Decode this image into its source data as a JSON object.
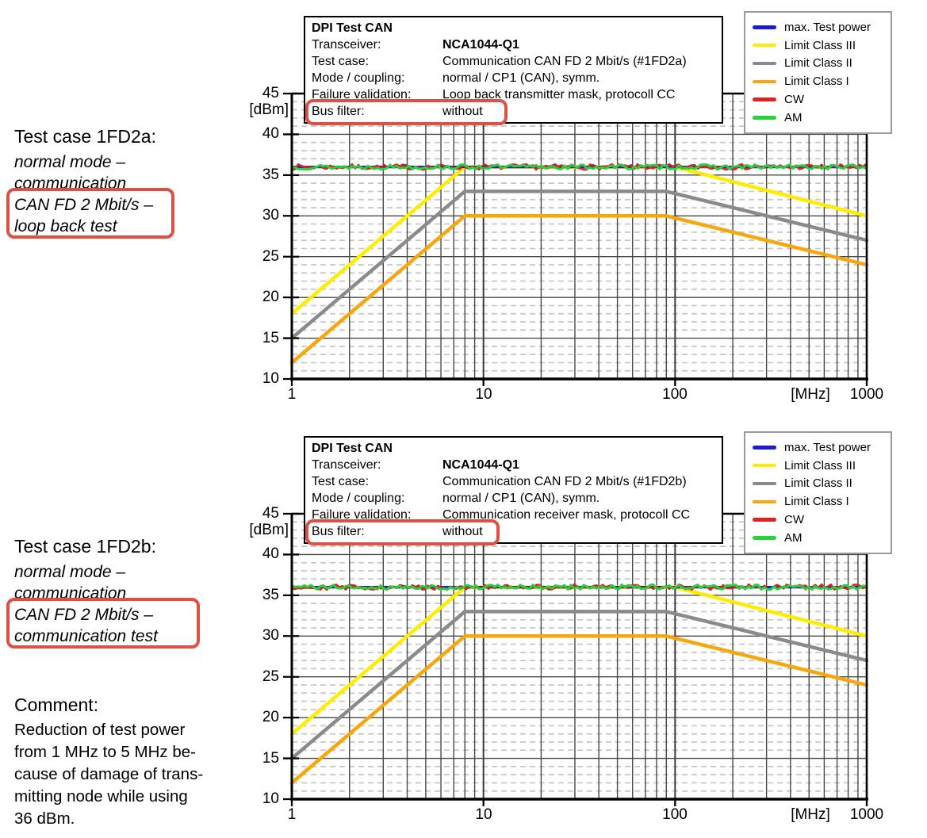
{
  "colors": {
    "highlight_box": "#dd5144",
    "grid_major": "#484848",
    "grid_minor": "#c6c6c6",
    "axis": "#000000"
  },
  "annotations": {
    "top": {
      "title": "Test case 1FD2a:",
      "lines": [
        "normal mode –",
        "communication"
      ],
      "boxed_lines": [
        "CAN FD 2 Mbit/s –",
        "loop back test"
      ]
    },
    "bottom": {
      "title": "Test case 1FD2b:",
      "lines": [
        "normal mode –",
        "communication"
      ],
      "boxed_lines": [
        "CAN FD 2 Mbit/s –",
        "communication test"
      ]
    },
    "comment": {
      "title": "Comment:",
      "lines": [
        "Reduction of test power",
        "from 1 MHz to 5 MHz be-",
        "cause of damage of trans-",
        "mitting node while using",
        "36 dBm."
      ]
    }
  },
  "info_boxes": [
    {
      "title": "DPI Test CAN",
      "rows": [
        {
          "label": "Transceiver:",
          "value": "NCA1044-Q1",
          "bold": true
        },
        {
          "label": "Test case:",
          "value": "Communication CAN FD 2 Mbit/s (#1FD2a)"
        },
        {
          "label": "Mode / coupling:",
          "value": "normal / CP1 (CAN), symm."
        },
        {
          "label": "Failure validation:",
          "value": "Loop back transmitter mask, protocoll CC"
        },
        {
          "label": "Bus filter:",
          "value": "without",
          "highlighted": true
        }
      ]
    },
    {
      "title": "DPI Test CAN",
      "rows": [
        {
          "label": "Transceiver:",
          "value": "NCA1044-Q1",
          "bold": true
        },
        {
          "label": "Test case:",
          "value": "Communication CAN FD 2 Mbit/s (#1FD2b)"
        },
        {
          "label": "Mode / coupling:",
          "value": "normal / CP1 (CAN), symm."
        },
        {
          "label": "Failure validation:",
          "value": "Communication receiver mask, protocoll CC"
        },
        {
          "label": "Bus filter:",
          "value": "without",
          "highlighted": true
        }
      ]
    }
  ],
  "chart_data": [
    {
      "type": "line",
      "title": "DPI Test CAN – Test case #1FD2a",
      "x_axis": {
        "scale": "log",
        "min": 1,
        "max": 1000,
        "unit_label": "[MHz]",
        "tick_labels": [
          "1",
          "10",
          "100",
          "1000"
        ]
      },
      "y_axis": {
        "min": 10,
        "max": 45,
        "major_step": 5,
        "minor_step": 1,
        "unit_label": "[dBm]",
        "tick_labels": [
          "45",
          "40",
          "35",
          "30",
          "25",
          "20",
          "15",
          "10"
        ]
      },
      "grid": true,
      "legend_position": "top-right",
      "legend": [
        "max. Test power",
        "Limit Class III",
        "Limit Class II",
        "Limit Class I",
        "CW",
        "AM"
      ],
      "series": [
        {
          "name": "Limit Class III",
          "color": "#ffec00",
          "width": 4.5,
          "points": [
            [
              1,
              18
            ],
            [
              8,
              36
            ],
            [
              100,
              36
            ],
            [
              1000,
              30
            ]
          ]
        },
        {
          "name": "Limit Class II",
          "color": "#8a8a8a",
          "width": 4.5,
          "points": [
            [
              1,
              15
            ],
            [
              8,
              33
            ],
            [
              90,
              33
            ],
            [
              1000,
              27
            ]
          ]
        },
        {
          "name": "Limit Class I",
          "color": "#f7a60d",
          "width": 4.5,
          "points": [
            [
              1,
              12
            ],
            [
              8,
              30
            ],
            [
              90,
              30
            ],
            [
              1000,
              24
            ]
          ]
        },
        {
          "name": "max. Test power",
          "color": "#1b1bd1",
          "width": 3.2,
          "points": [
            [
              1,
              36
            ],
            [
              1000,
              36
            ]
          ]
        },
        {
          "name": "CW",
          "color": "#dd2222",
          "width": 2.6,
          "noisy": true,
          "base": 36,
          "amplitude": 0.33,
          "seed": 7
        },
        {
          "name": "AM",
          "color": "#27d23a",
          "width": 3.0,
          "noisy": true,
          "base": 36,
          "amplitude": 0.3,
          "seed": 13
        }
      ]
    },
    {
      "type": "line",
      "title": "DPI Test CAN – Test case #1FD2b",
      "x_axis": {
        "scale": "log",
        "min": 1,
        "max": 1000,
        "unit_label": "[MHz]",
        "tick_labels": [
          "1",
          "10",
          "100",
          "1000"
        ]
      },
      "y_axis": {
        "min": 10,
        "max": 45,
        "major_step": 5,
        "minor_step": 1,
        "unit_label": "[dBm]",
        "tick_labels": [
          "45",
          "40",
          "35",
          "30",
          "25",
          "20",
          "15",
          "10"
        ]
      },
      "grid": true,
      "legend_position": "top-right",
      "legend": [
        "max. Test power",
        "Limit Class III",
        "Limit Class II",
        "Limit Class I",
        "CW",
        "AM"
      ],
      "series": [
        {
          "name": "Limit Class III",
          "color": "#ffec00",
          "width": 4.5,
          "points": [
            [
              1,
              18
            ],
            [
              8,
              36
            ],
            [
              100,
              36
            ],
            [
              1000,
              30
            ]
          ]
        },
        {
          "name": "Limit Class II",
          "color": "#8a8a8a",
          "width": 4.5,
          "points": [
            [
              1,
              15
            ],
            [
              8,
              33
            ],
            [
              90,
              33
            ],
            [
              1000,
              27
            ]
          ]
        },
        {
          "name": "Limit Class I",
          "color": "#f7a60d",
          "width": 4.5,
          "points": [
            [
              1,
              12
            ],
            [
              8,
              30
            ],
            [
              90,
              30
            ],
            [
              1000,
              24
            ]
          ]
        },
        {
          "name": "max. Test power",
          "color": "#1b1bd1",
          "width": 3.2,
          "points": [
            [
              1,
              36
            ],
            [
              1000,
              36
            ]
          ]
        },
        {
          "name": "CW",
          "color": "#dd2222",
          "width": 2.6,
          "noisy": true,
          "base": 36,
          "amplitude": 0.33,
          "seed": 29
        },
        {
          "name": "AM",
          "color": "#27d23a",
          "width": 3.0,
          "noisy": true,
          "base": 36,
          "amplitude": 0.3,
          "seed": 41
        }
      ]
    }
  ]
}
